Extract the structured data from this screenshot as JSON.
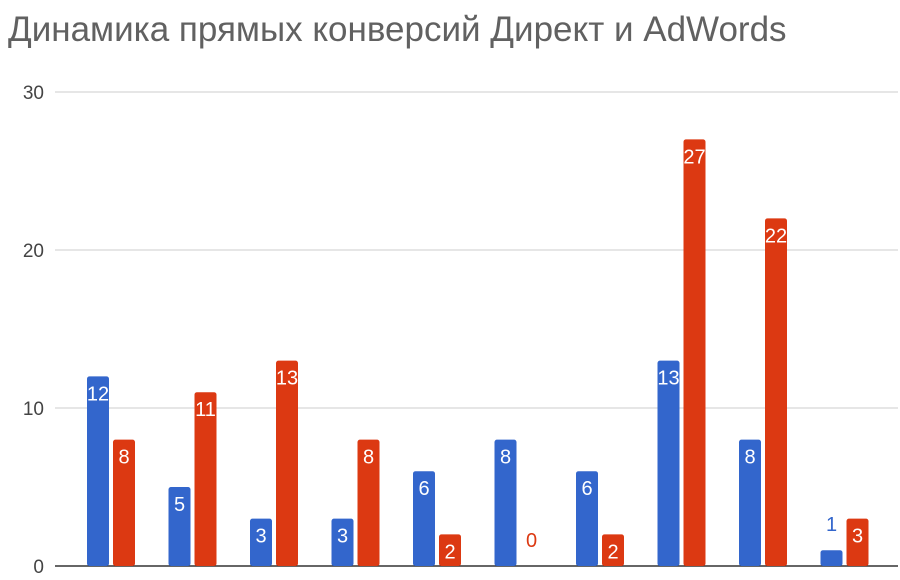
{
  "chart_data": {
    "type": "bar",
    "title": "Динамика прямых конверсий Директ и AdWords",
    "xlabel": "",
    "ylabel": "",
    "ylim": [
      0,
      30
    ],
    "yticks": [
      "0",
      "10",
      "20",
      "30"
    ],
    "grid": true,
    "categories": [
      "",
      "",
      "",
      "",
      "",
      "",
      "",
      "",
      "",
      ""
    ],
    "series": [
      {
        "values": [
          12,
          5,
          3,
          3,
          6,
          8,
          6,
          13,
          8,
          1
        ],
        "color": "#3366cc"
      },
      {
        "values": [
          8,
          11,
          13,
          8,
          2,
          0,
          2,
          27,
          22,
          3
        ],
        "color": "#dc3912"
      }
    ],
    "data_labels": [
      [
        "12",
        "5",
        "3",
        "3",
        "6",
        "8",
        "6",
        "13",
        "8",
        "1"
      ],
      [
        "8",
        "11",
        "13",
        "8",
        "2",
        "0",
        "2",
        "27",
        "22",
        "3"
      ]
    ]
  }
}
